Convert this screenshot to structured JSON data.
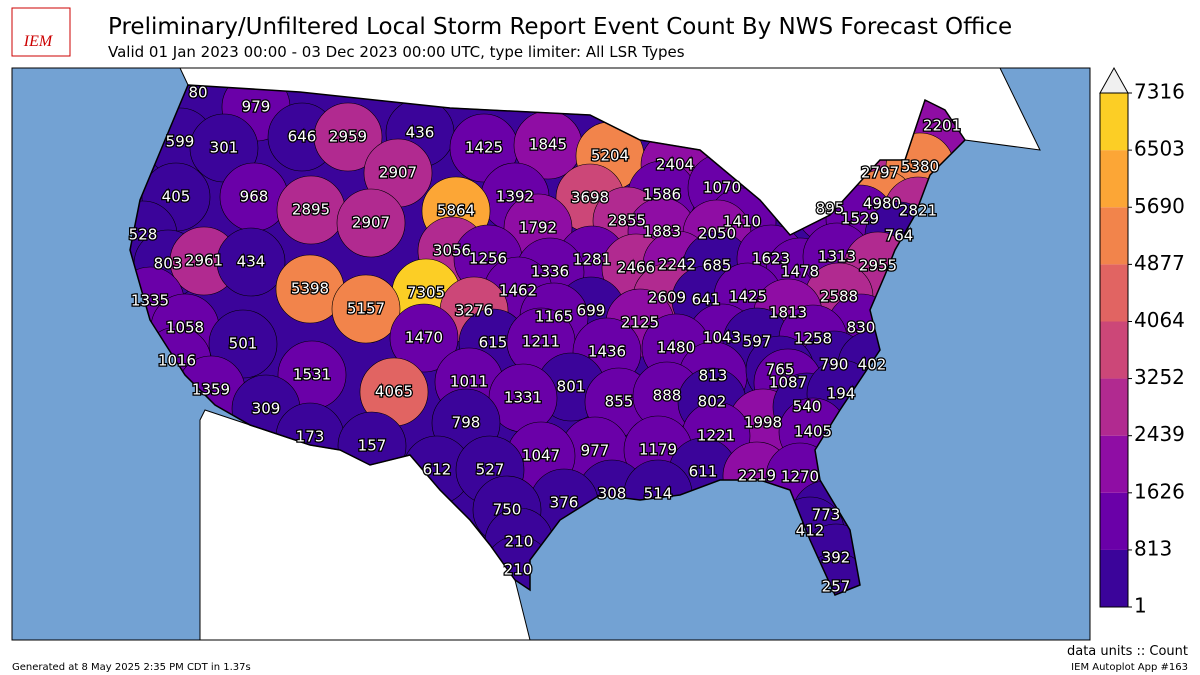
{
  "header": {
    "logo": "IEM",
    "title": "Preliminary/Unfiltered Local Storm Report Event Count By NWS Forecast Office",
    "subtitle": "Valid 01 Jan 2023 00:00 - 03 Dec 2023 00:00 UTC, type limiter: All LSR Types"
  },
  "map": {
    "counts": [
      80,
      979,
      646,
      2959,
      436,
      1425,
      1845,
      599,
      301,
      5204,
      2404,
      2201,
      2907,
      1392,
      3698,
      1586,
      1070,
      2797,
      5380,
      405,
      968,
      2895,
      5864,
      895,
      4980,
      1529,
      2821,
      2907,
      1792,
      2855,
      1883,
      1410,
      2050,
      764,
      528,
      3056,
      1256,
      1281,
      2466,
      2242,
      685,
      1623,
      1478,
      1313,
      2955,
      803,
      2961,
      434,
      1336,
      5398,
      7305,
      1462,
      2609,
      641,
      1425,
      2588,
      1335,
      5157,
      3276,
      699,
      1813,
      1058,
      1165,
      2125,
      830,
      1470,
      615,
      1211,
      1043,
      597,
      1258,
      501,
      1436,
      1480,
      1016,
      790,
      402,
      1531,
      813,
      765,
      1087,
      1011,
      801,
      1359,
      4065,
      1331,
      855,
      888,
      802,
      1998,
      540,
      194,
      309,
      798,
      1221,
      1405,
      173,
      157,
      977,
      1179,
      1047,
      612,
      527,
      611,
      2219,
      1270,
      308,
      514,
      376,
      750,
      773,
      412,
      210,
      392,
      210,
      257
    ]
  },
  "colorbar": {
    "lim": [
      1,
      7316
    ],
    "ticks": [
      1,
      813,
      1626,
      2439,
      3252,
      4064,
      4877,
      5690,
      6503,
      7316
    ],
    "colors": [
      "#3b049a",
      "#6a00a8",
      "#8f0da4",
      "#b12a90",
      "#cc4778",
      "#e16462",
      "#f2844b",
      "#fca636",
      "#fcce25"
    ],
    "units": "data units :: Count"
  },
  "footer": {
    "generated": "Generated at 8 May 2025 2:35 PM CDT in 1.37s",
    "app": "IEM Autoplot App #163"
  }
}
